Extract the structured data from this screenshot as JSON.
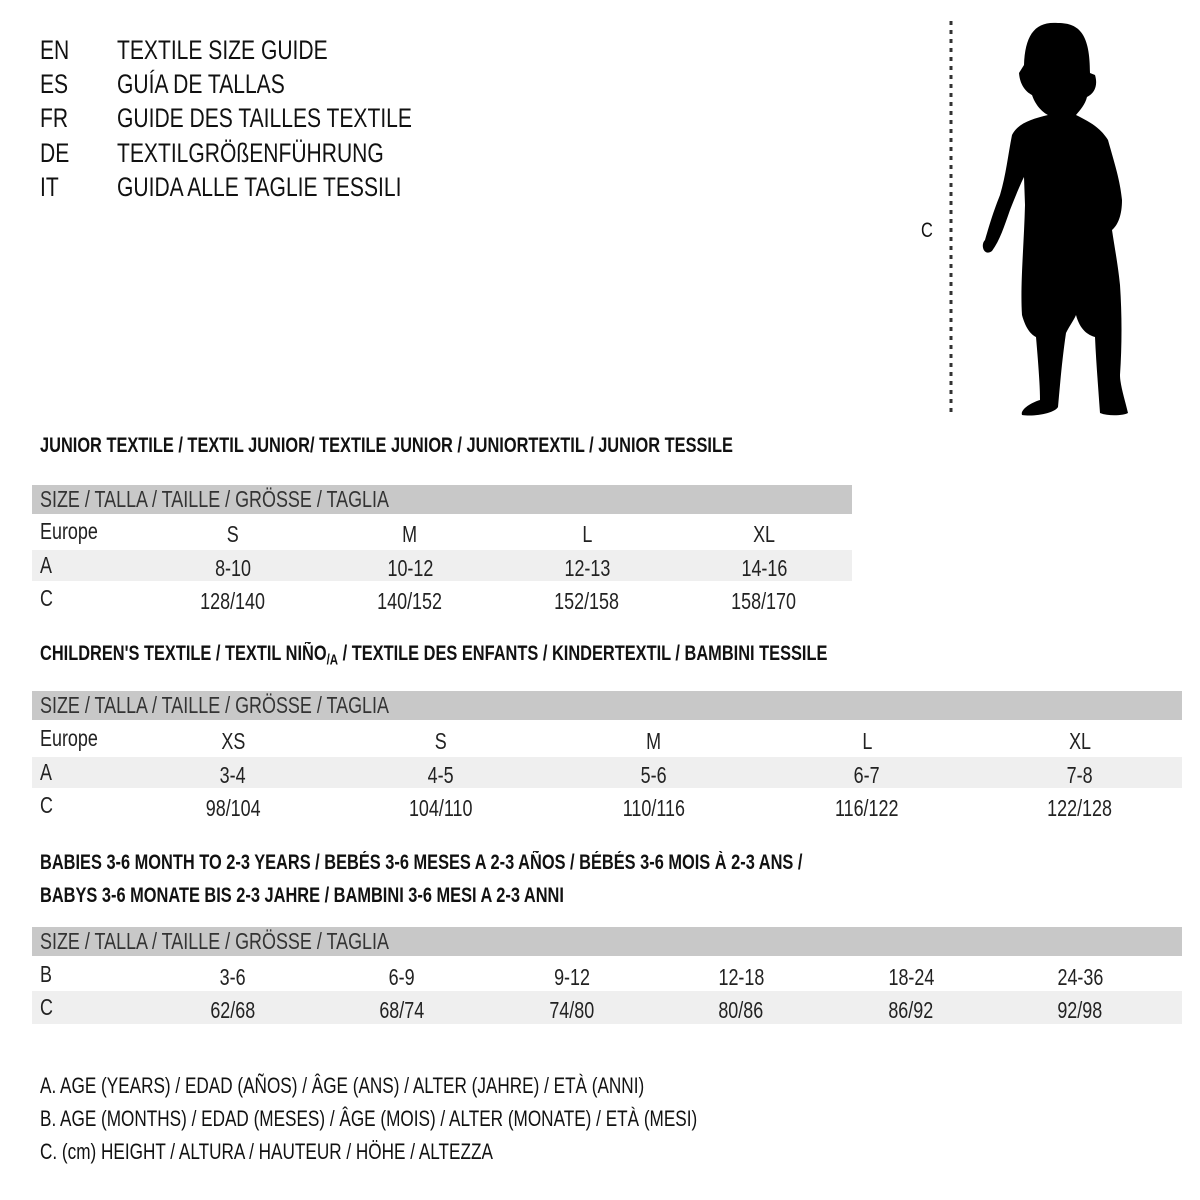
{
  "titles": [
    {
      "lang": "EN",
      "text": "TEXTILE SIZE GUIDE"
    },
    {
      "lang": "ES",
      "text": "GUÍA DE TALLAS"
    },
    {
      "lang": "FR",
      "text": "GUIDE DES TAILLES TEXTILE"
    },
    {
      "lang": "DE",
      "text": "TEXTILGRÖßENFÜHRUNG"
    },
    {
      "lang": "IT",
      "text": "GUIDA ALLE TAGLIE TESSILI"
    }
  ],
  "figure": {
    "measure_label": "C",
    "icon": "child-silhouette"
  },
  "size_header": "SIZE / TALLA / TAILLE / GRÖSSE / TAGLIA",
  "junior": {
    "heading": "JUNIOR TEXTILE / TEXTIL JUNIOR/ TEXTILE JUNIOR / JUNIORTEXTIL / JUNIOR TESSILE",
    "rows": [
      {
        "label": "Europe",
        "values": [
          "S",
          "M",
          "L",
          "XL"
        ]
      },
      {
        "label": "A",
        "values": [
          "8-10",
          "10-12",
          "12-13",
          "14-16"
        ]
      },
      {
        "label": "C",
        "values": [
          "128/140",
          "140/152",
          "152/158",
          "158/170"
        ]
      }
    ]
  },
  "children": {
    "heading_pre": "CHILDREN'S TEXTILE / TEXTIL NIÑO",
    "heading_sub": "/A",
    "heading_post": " / TEXTILE DES ENFANTS / KINDERTEXTIL / BAMBINI TESSILE",
    "rows": [
      {
        "label": "Europe",
        "values": [
          "XS",
          "S",
          "M",
          "L",
          "XL"
        ]
      },
      {
        "label": "A",
        "values": [
          "3-4",
          "4-5",
          "5-6",
          "6-7",
          "7-8"
        ]
      },
      {
        "label": "C",
        "values": [
          "98/104",
          "104/110",
          "110/116",
          "116/122",
          "122/128"
        ]
      }
    ]
  },
  "babies": {
    "heading_line1": "BABIES 3-6 MONTH TO 2-3 YEARS / BEBÉS 3-6 MESES A 2-3 AÑOS / BÉBÉS 3-6 MOIS À 2-3 ANS /",
    "heading_line2": "BABYS 3-6 MONATE BIS 2-3 JAHRE / BAMBINI 3-6 MESI A 2-3 ANNI",
    "rows": [
      {
        "label": "B",
        "values": [
          "3-6",
          "6-9",
          "9-12",
          "12-18",
          "18-24",
          "24-36"
        ]
      },
      {
        "label": "C",
        "values": [
          "62/68",
          "68/74",
          "74/80",
          "80/86",
          "86/92",
          "92/98"
        ]
      }
    ]
  },
  "legend": [
    "A. AGE (YEARS) / EDAD (AÑOS) / ÂGE (ANS) / ALTER (JAHRE) / ETÀ (ANNI)",
    "B. AGE (MONTHS) / EDAD (MESES) / ÂGE (MOIS) / ALTER (MONATE) / ETÀ (MESI)",
    "C. (cm) HEIGHT / ALTURA / HAUTEUR / HÖHE / ALTEZZA"
  ],
  "colors": {
    "header_band": "#c8c8c8",
    "row_shade": "#efefef",
    "text": "#111111"
  }
}
